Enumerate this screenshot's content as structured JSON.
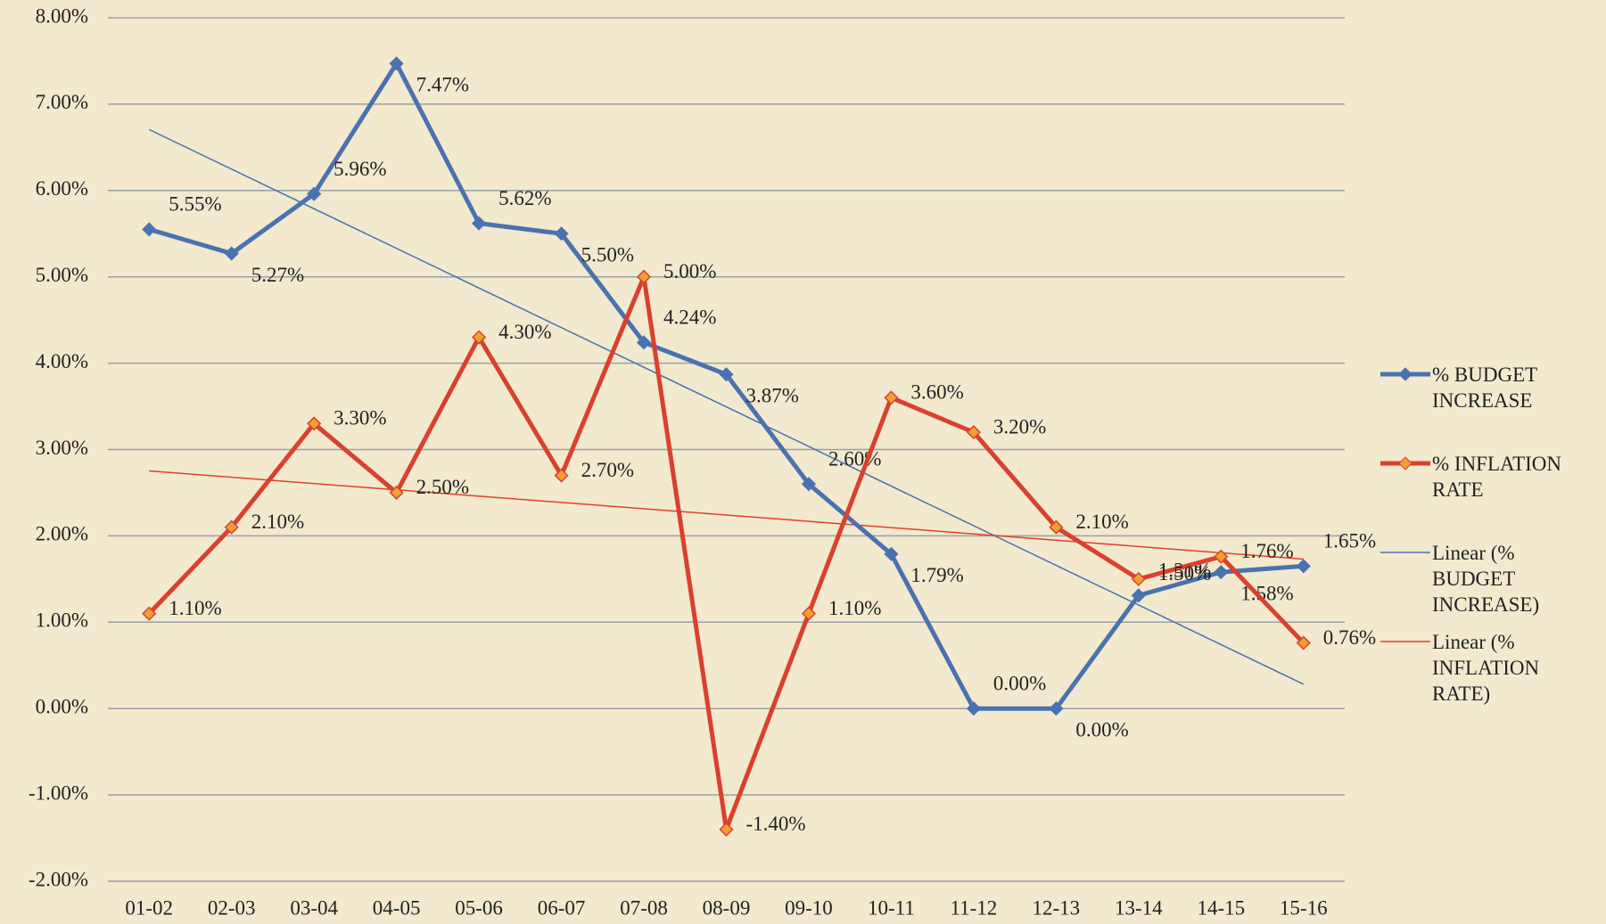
{
  "chart_data": {
    "type": "line",
    "categories": [
      "01-02",
      "02-03",
      "03-04",
      "04-05",
      "05-06",
      "06-07",
      "07-08",
      "08-09",
      "09-10",
      "10-11",
      "11-12",
      "12-13",
      "13-14",
      "14-15",
      "15-16"
    ],
    "series": [
      {
        "name": "% BUDGET INCREASE",
        "color": "#4a72b0",
        "marker_color": "#4a72b0",
        "values": [
          5.55,
          5.27,
          5.96,
          7.47,
          5.62,
          5.5,
          4.24,
          3.87,
          2.6,
          1.79,
          0.0,
          0.0,
          1.31,
          1.58,
          1.65
        ],
        "value_labels": [
          "5.55%",
          "5.27%",
          "5.96%",
          "7.47%",
          "5.62%",
          "5.50%",
          "4.24%",
          "3.87%",
          "2.60%",
          "1.79%",
          "0.00%",
          "0.00%",
          "1.31%",
          "1.58%",
          "1.65%"
        ],
        "trendline": {
          "name": "Linear (% BUDGET INCREASE)",
          "color": "#4a72b0"
        }
      },
      {
        "name": "% INFLATION RATE",
        "color": "#d9412e",
        "marker_color": "#f0a030",
        "values": [
          1.1,
          2.1,
          3.3,
          2.5,
          4.3,
          2.7,
          5.0,
          -1.4,
          1.1,
          3.6,
          3.2,
          2.1,
          1.5,
          1.76,
          0.76
        ],
        "value_labels": [
          "1.10%",
          "2.10%",
          "3.30%",
          "2.50%",
          "4.30%",
          "2.70%",
          "5.00%",
          "-1.40%",
          "1.10%",
          "3.60%",
          "3.20%",
          "2.10%",
          "1.50%",
          "1.76%",
          "0.76%"
        ],
        "trendline": {
          "name": "Linear (% INFLATION RATE)",
          "color": "#e0402a"
        }
      }
    ],
    "ylim": [
      -2,
      8
    ],
    "yticks": [
      {
        "value": -2,
        "label": "-2.00%"
      },
      {
        "value": -1,
        "label": "-1.00%"
      },
      {
        "value": 0,
        "label": "0.00%"
      },
      {
        "value": 1,
        "label": "1.00%"
      },
      {
        "value": 2,
        "label": "2.00%"
      },
      {
        "value": 3,
        "label": "3.00%"
      },
      {
        "value": 4,
        "label": "4.00%"
      },
      {
        "value": 5,
        "label": "5.00%"
      },
      {
        "value": 6,
        "label": "6.00%"
      },
      {
        "value": 7,
        "label": "7.00%"
      },
      {
        "value": 8,
        "label": "8.00%"
      }
    ],
    "grid": true,
    "legend": "right"
  }
}
